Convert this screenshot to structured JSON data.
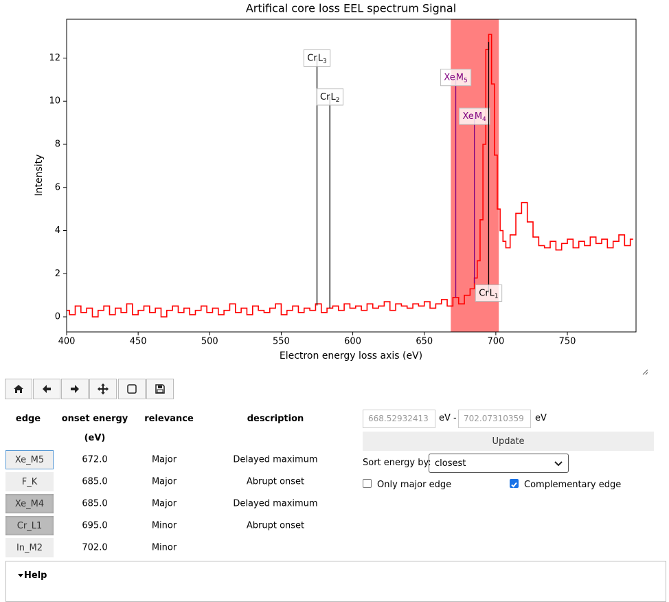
{
  "chart_data": {
    "type": "line",
    "title": "Artifical core loss EEL spectrum Signal",
    "x_label": "Electron energy loss axis (eV)",
    "y_label": "Intensity",
    "x": [
      400,
      404,
      408,
      412,
      416,
      420,
      424,
      428,
      432,
      436,
      440,
      444,
      448,
      452,
      456,
      460,
      464,
      468,
      472,
      476,
      480,
      484,
      488,
      492,
      496,
      500,
      504,
      508,
      512,
      516,
      520,
      524,
      528,
      532,
      536,
      540,
      544,
      548,
      552,
      556,
      560,
      564,
      568,
      572,
      576,
      580,
      584,
      588,
      592,
      596,
      600,
      604,
      608,
      612,
      616,
      620,
      624,
      628,
      632,
      636,
      640,
      644,
      648,
      652,
      656,
      660,
      664,
      668,
      672,
      676,
      680,
      684,
      686,
      688,
      690,
      692,
      694,
      696,
      698,
      700,
      702,
      704,
      706,
      708,
      712,
      716,
      720,
      724,
      728,
      732,
      736,
      740,
      744,
      748,
      752,
      756,
      760,
      764,
      768,
      772,
      776,
      780,
      784,
      788,
      792,
      796
    ],
    "series": [
      {
        "name": "Signal",
        "color": "#ff0000",
        "values": [
          0.3,
          0.1,
          0.5,
          0.2,
          0.4,
          0.0,
          0.3,
          0.5,
          0.1,
          0.4,
          0.2,
          0.6,
          0.1,
          0.3,
          0.5,
          0.2,
          0.4,
          0.0,
          0.3,
          0.5,
          0.2,
          0.4,
          0.1,
          0.3,
          0.5,
          0.2,
          0.4,
          0.1,
          0.3,
          0.6,
          0.2,
          0.4,
          0.1,
          0.5,
          0.3,
          0.2,
          0.4,
          0.6,
          0.1,
          0.3,
          0.5,
          0.2,
          0.4,
          0.3,
          0.6,
          0.2,
          0.4,
          0.5,
          0.3,
          0.6,
          0.4,
          0.5,
          0.3,
          0.6,
          0.4,
          0.5,
          0.7,
          0.3,
          0.6,
          0.5,
          0.4,
          0.6,
          0.5,
          0.7,
          0.4,
          0.6,
          0.8,
          0.5,
          0.9,
          0.6,
          1.0,
          1.3,
          1.8,
          2.6,
          4.5,
          8.0,
          12.4,
          13.1,
          10.8,
          7.5,
          5.0,
          4.0,
          3.5,
          3.2,
          3.8,
          4.8,
          5.3,
          4.4,
          3.7,
          3.3,
          3.2,
          3.5,
          3.1,
          3.4,
          3.6,
          3.2,
          3.5,
          3.3,
          3.7,
          3.4,
          3.6,
          3.2,
          3.5,
          3.8,
          3.3,
          3.6
        ]
      }
    ],
    "xlim": [
      400,
      798
    ],
    "ylim": [
      -0.7,
      13.8
    ],
    "xticks": [
      400,
      450,
      500,
      550,
      600,
      650,
      700,
      750
    ],
    "yticks": [
      0,
      2,
      4,
      6,
      8,
      10,
      12
    ],
    "span": {
      "start": 668.53,
      "end": 702.07,
      "color": "#ff0000"
    },
    "markers": [
      {
        "name": "Cr",
        "shell": "L",
        "index": "3",
        "x": 575,
        "label_y": 12.0,
        "color": "#000000"
      },
      {
        "name": "Cr",
        "shell": "L",
        "index": "2",
        "x": 584,
        "label_y": 10.2,
        "color": "#000000"
      },
      {
        "name": "Xe",
        "shell": "M",
        "index": "5",
        "x": 672,
        "label_y": 11.1,
        "color": "#800080"
      },
      {
        "name": "Xe",
        "shell": "M",
        "index": "4",
        "x": 685,
        "label_y": 9.3,
        "color": "#800080"
      },
      {
        "name": "Cr",
        "shell": "L",
        "index": "1",
        "x": 695,
        "label_y": 1.1,
        "color": "#000000"
      }
    ]
  },
  "table": {
    "headers": [
      "edge",
      "onset energy",
      "relevance",
      "description"
    ],
    "unit": "(eV)",
    "rows": [
      {
        "edge": "Xe_M5",
        "onset": "672.0",
        "relevance": "Major",
        "description": "Delayed maximum",
        "state": "focused"
      },
      {
        "edge": "F_K",
        "onset": "685.0",
        "relevance": "Major",
        "description": "Abrupt onset",
        "state": "normal"
      },
      {
        "edge": "Xe_M4",
        "onset": "685.0",
        "relevance": "Major",
        "description": "Delayed maximum",
        "state": "pressed"
      },
      {
        "edge": "Cr_L1",
        "onset": "695.0",
        "relevance": "Minor",
        "description": "Abrupt onset",
        "state": "pressed"
      },
      {
        "edge": "In_M2",
        "onset": "702.0",
        "relevance": "Minor",
        "state": "normal"
      }
    ]
  },
  "controls": {
    "start": "668.52932413",
    "sep": "eV -",
    "end": "702.07310359",
    "unit": "eV",
    "update": "Update",
    "sort_label": "Sort energy by:",
    "sort_value": "closest",
    "only_major": {
      "label": "Only major edge",
      "checked": false
    },
    "complementary": {
      "label": "Complementary edge",
      "checked": true
    }
  },
  "help": "Help"
}
